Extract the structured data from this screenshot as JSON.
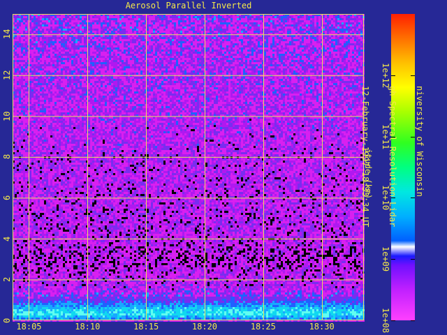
{
  "chart_data": {
    "type": "heatmap",
    "title": "Aerosol Parallel Inverted",
    "ylabel": "itude (km)",
    "y_ticks": [
      "0",
      "2",
      "4",
      "6",
      "8",
      "10",
      "12",
      "14"
    ],
    "y_tick_values": [
      0,
      2,
      4,
      6,
      8,
      10,
      12,
      14
    ],
    "x_ticks": [
      "18:05",
      "18:10",
      "18:15",
      "18:20",
      "18:25",
      "18:30"
    ],
    "x_tick_minutes": [
      5,
      10,
      15,
      20,
      25,
      30
    ],
    "xlim_minutes": [
      3.6,
      33.6
    ],
    "ylim": [
      0,
      15
    ],
    "grid": true,
    "colorbar": {
      "scale": "log",
      "range": [
        100000000.0,
        10000000000000.0
      ],
      "ticks": [
        "1e+08",
        "1e+09",
        "1e+10",
        "1e+11",
        "1e+12"
      ],
      "tick_values": [
        100000000.0,
        1000000000.0,
        10000000000.0,
        100000000000.0,
        1000000000000.0
      ]
    },
    "profile_log10": [
      {
        "altitude_km": 0.0,
        "level": 9.0
      },
      {
        "altitude_km": 0.3,
        "level": 9.4
      },
      {
        "altitude_km": 0.6,
        "level": 9.25
      },
      {
        "altitude_km": 1.0,
        "level": 8.9
      },
      {
        "altitude_km": 1.5,
        "level": 8.55
      },
      {
        "altitude_km": 2.0,
        "level": 8.45
      },
      {
        "altitude_km": 3.0,
        "level": 8.3
      },
      {
        "altitude_km": 4.0,
        "level": 8.45
      },
      {
        "altitude_km": 8.0,
        "level": 8.5
      },
      {
        "altitude_km": 12.0,
        "level": 8.6
      },
      {
        "altitude_km": 15.0,
        "level": 8.7
      }
    ]
  },
  "credits": {
    "line1": "niversity of Wisconsin",
    "line2": "gh Spectral Resolution Lidar",
    "line3": "12-February-1997 18:33:34 UT"
  },
  "colors": {
    "background": "#262896",
    "text": "#f5e94a",
    "grid": "#e8e060"
  }
}
